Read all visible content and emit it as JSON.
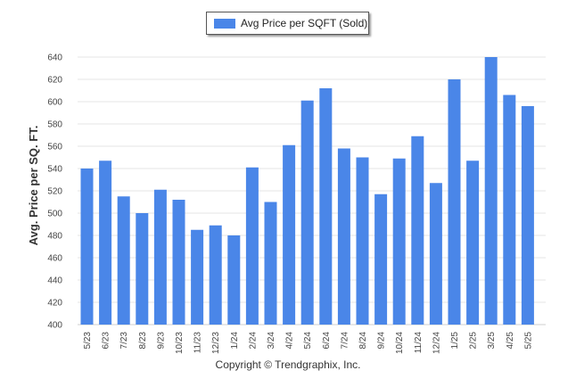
{
  "chart_data": {
    "type": "bar",
    "ylabel": "Avg. Price per SQ. FT.",
    "xlabel": "",
    "ylim": [
      400,
      640
    ],
    "yticks": [
      400,
      420,
      440,
      460,
      480,
      500,
      520,
      540,
      560,
      580,
      600,
      620,
      640
    ],
    "grid": true,
    "legend_placement": "top-center",
    "categories": [
      "5/23",
      "6/23",
      "7/23",
      "8/23",
      "9/23",
      "10/23",
      "11/23",
      "12/23",
      "1/24",
      "2/24",
      "3/24",
      "4/24",
      "5/24",
      "6/24",
      "7/24",
      "8/24",
      "9/24",
      "10/24",
      "11/24",
      "12/24",
      "1/25",
      "2/25",
      "3/25",
      "4/25",
      "5/25"
    ],
    "series": [
      {
        "name": "Avg Price per SQFT (Sold)",
        "color": "#4a86e8",
        "values": [
          540,
          547,
          515,
          500,
          521,
          512,
          485,
          489,
          480,
          541,
          510,
          561,
          601,
          612,
          558,
          550,
          517,
          549,
          569,
          527,
          620,
          547,
          640,
          606,
          596
        ]
      }
    ]
  },
  "footer": {
    "copyright": "Copyright © Trendgraphix, Inc."
  }
}
